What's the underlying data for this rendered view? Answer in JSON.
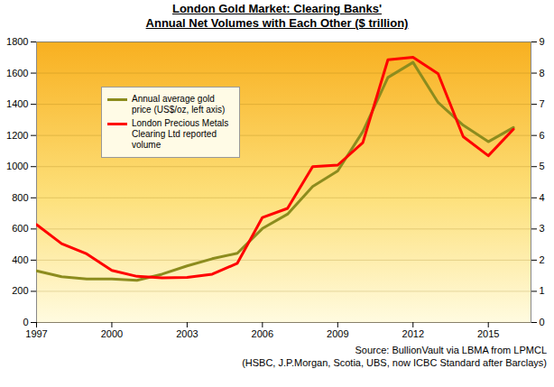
{
  "chart_data": {
    "type": "line",
    "title": "London Gold Market: Clearing Banks'",
    "subtitle": "Annual Net Volumes with Each Other ($ trillion)",
    "source": [
      "Source: BullionVault via LBMA from LPMCL",
      "(HSBC, J.P.Morgan, Scotia, UBS, now ICBC Standard after Barclays)"
    ],
    "x": [
      1997,
      1998,
      1999,
      2000,
      2001,
      2002,
      2003,
      2004,
      2005,
      2006,
      2007,
      2008,
      2009,
      2010,
      2011,
      2012,
      2013,
      2014,
      2015,
      2016
    ],
    "xlim": [
      1997,
      2016.7
    ],
    "xticks": [
      1997,
      2000,
      2003,
      2006,
      2009,
      2012,
      2015
    ],
    "ylim": [
      0,
      1800
    ],
    "yticks": [
      0,
      200,
      400,
      600,
      800,
      1000,
      1200,
      1400,
      1600,
      1800
    ],
    "y2lim": [
      0,
      9
    ],
    "y2ticks": [
      0,
      1,
      2,
      3,
      4,
      5,
      6,
      7,
      8,
      9
    ],
    "grid": true,
    "legend": "upper left",
    "series": [
      {
        "name": "Annual average gold price (US$/oz, left axis)",
        "color": "#8c8c1e",
        "values": [
          331,
          294,
          279,
          279,
          271,
          310,
          363,
          409,
          444,
          603,
          695,
          872,
          972,
          1225,
          1572,
          1669,
          1411,
          1266,
          1160,
          1251
        ]
      },
      {
        "name": "London Precious Metals Clearing Ltd reported volume",
        "color": "#ff0000",
        "axis": "y2",
        "values": [
          3.14,
          2.53,
          2.2,
          1.67,
          1.48,
          1.43,
          1.45,
          1.55,
          1.9,
          3.37,
          3.66,
          5.0,
          5.05,
          5.77,
          8.43,
          8.51,
          7.98,
          5.96,
          5.35,
          6.2
        ]
      }
    ]
  }
}
